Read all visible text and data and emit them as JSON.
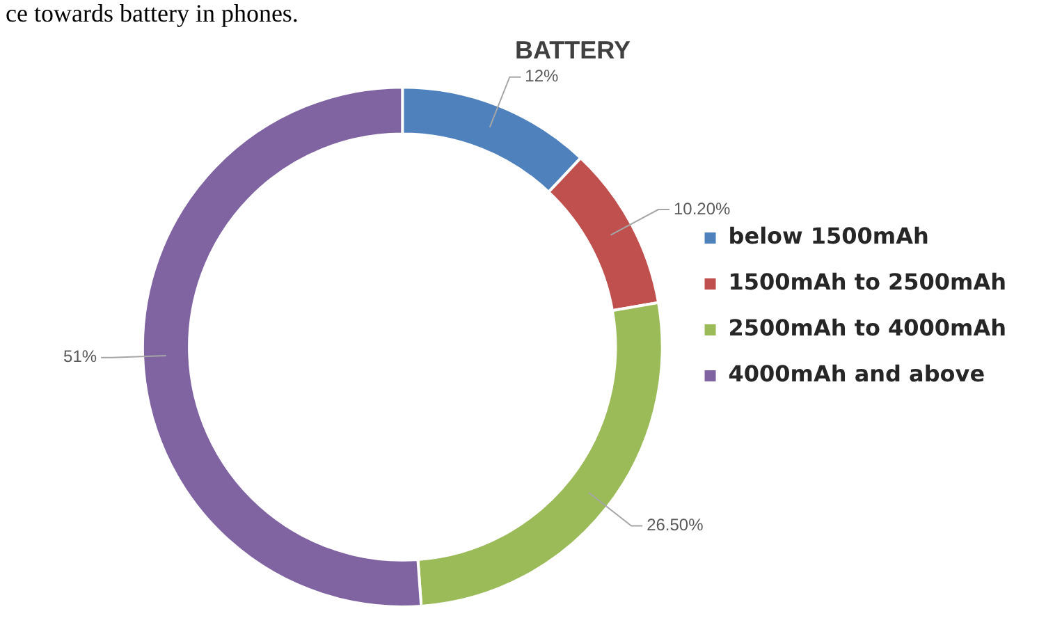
{
  "chart_data": {
    "type": "donut",
    "title": "BATTERY",
    "annotations": [
      "ce towards battery in phones."
    ],
    "categories": [
      "below 1500mAh",
      "1500mAh to 2500mAh",
      "2500mAh to 4000mAh",
      "4000mAh and above"
    ],
    "values": [
      12,
      10.2,
      26.5,
      51
    ],
    "value_labels": [
      "12%",
      "10.20%",
      "26.50%",
      "51%"
    ],
    "colors": [
      "#4f81bd",
      "#c0504d",
      "#9bbb59",
      "#8064a2"
    ],
    "legend": "right"
  }
}
